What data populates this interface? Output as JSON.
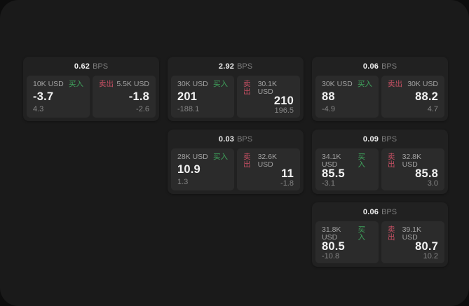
{
  "labels": {
    "unit": "BPS",
    "buy": "买入",
    "sell": "卖出"
  },
  "colors": {
    "page_bg": "#1a1a1a",
    "card_bg": "#212121",
    "panel_bg": "#2b2b2b",
    "buy": "#3fa25c",
    "sell": "#c75064"
  },
  "cards": [
    {
      "row": 1,
      "col": 1,
      "bps": "0.62",
      "buy": {
        "amount": "10K USD",
        "price": "-3.7",
        "sub": "4.3"
      },
      "sell": {
        "amount": "5.5K USD",
        "price": "-1.8",
        "sub": "-2.6"
      }
    },
    {
      "row": 1,
      "col": 2,
      "bps": "2.92",
      "buy": {
        "amount": "30K USD",
        "price": "201",
        "sub": "-188.1"
      },
      "sell": {
        "amount": "30.1K USD",
        "price": "210",
        "sub": "196.5"
      }
    },
    {
      "row": 1,
      "col": 3,
      "bps": "0.06",
      "buy": {
        "amount": "30K USD",
        "price": "88",
        "sub": "-4.9"
      },
      "sell": {
        "amount": "30K USD",
        "price": "88.2",
        "sub": "4.7"
      }
    },
    {
      "row": 2,
      "col": 2,
      "bps": "0.03",
      "buy": {
        "amount": "28K USD",
        "price": "10.9",
        "sub": "1.3"
      },
      "sell": {
        "amount": "32.6K USD",
        "price": "11",
        "sub": "-1.8"
      }
    },
    {
      "row": 2,
      "col": 3,
      "bps": "0.09",
      "buy": {
        "amount": "34.1K USD",
        "price": "85.5",
        "sub": "-3.1"
      },
      "sell": {
        "amount": "32.8K USD",
        "price": "85.8",
        "sub": "3.0"
      }
    },
    {
      "row": 3,
      "col": 3,
      "bps": "0.06",
      "buy": {
        "amount": "31.8K USD",
        "price": "80.5",
        "sub": "-10.8"
      },
      "sell": {
        "amount": "39.1K USD",
        "price": "80.7",
        "sub": "10.2"
      }
    }
  ]
}
